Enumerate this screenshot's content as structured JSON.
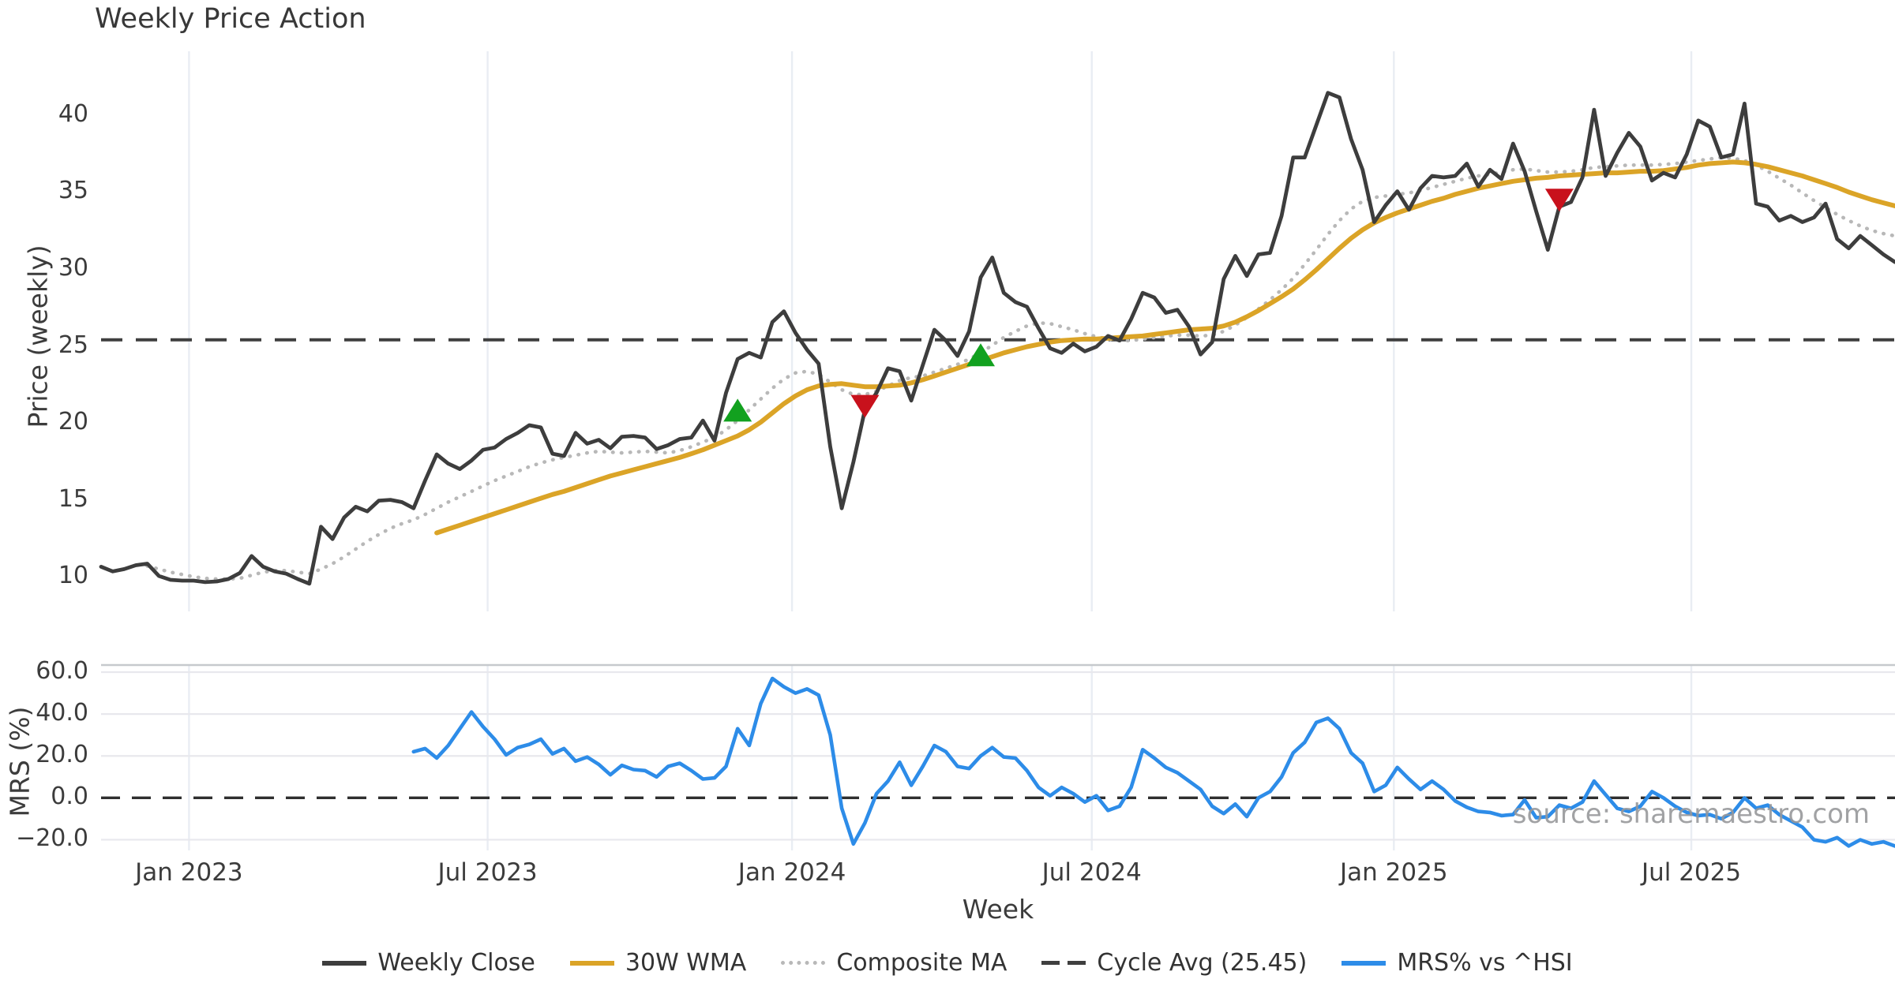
{
  "labels": {
    "title": "Weekly Price Action",
    "price_axis": "Price (weekly)",
    "mrs_axis": "MRS (%)",
    "x_axis": "Week",
    "watermark": "source: sharemaestro.com"
  },
  "legend": [
    {
      "name": "weekly-close",
      "label": "Weekly Close",
      "style": "solid",
      "color": "#3d3d3d"
    },
    {
      "name": "wma",
      "label": "30W WMA",
      "style": "solid",
      "color": "#dba427"
    },
    {
      "name": "composite",
      "label": "Composite MA",
      "style": "dotted",
      "color": "#b8b8b8"
    },
    {
      "name": "cycle-avg",
      "label": "Cycle Avg (25.45)",
      "style": "dashed",
      "color": "#3f3f3f"
    },
    {
      "name": "mrs",
      "label": "MRS% vs ^HSI",
      "style": "solid",
      "color": "#2d8ce8"
    }
  ],
  "colors": {
    "close": "#3d3d3d",
    "wma": "#dba427",
    "composite": "#b8b8b8",
    "cycle": "#3f3f3f",
    "mrs": "#2d8ce8",
    "green": "#12a11f",
    "red": "#c8111c",
    "grid": "#e9edf3",
    "hgrid": "#e8e8ed",
    "spine": "#c6c9cd"
  },
  "chart_data": {
    "type": "line",
    "title": "Weekly Price Action",
    "xlabel": "Week",
    "panels": [
      {
        "name": "price",
        "ylabel": "Price (weekly)",
        "ylim": [
          7.8,
          44.2
        ],
        "yticks": [
          40,
          35,
          30,
          25,
          20,
          15,
          10
        ],
        "cycle_avg": 25.45
      },
      {
        "name": "mrs",
        "ylabel": "MRS (%)",
        "ylim": [
          -25.1,
          63.4
        ],
        "yticks": [
          60.0,
          40.0,
          20.0,
          0.0,
          -20.0
        ],
        "ytick_labels": [
          "60.0",
          "40.0",
          "20.0",
          "0.0",
          "−20.0"
        ],
        "zero_line": 0.0
      }
    ],
    "x_ticks": [
      {
        "week": 7.6,
        "label": "Jan 2023"
      },
      {
        "week": 33.4,
        "label": "Jul 2023"
      },
      {
        "week": 59.7,
        "label": "Jan 2024"
      },
      {
        "week": 85.6,
        "label": "Jul 2024"
      },
      {
        "week": 111.7,
        "label": "Jan 2025"
      },
      {
        "week": 137.4,
        "label": "Jul 2025"
      }
    ],
    "n_weeks": 156,
    "series": [
      {
        "name": "Weekly Close",
        "panel": "price",
        "values": [
          10.7,
          10.4,
          10.55,
          10.8,
          10.9,
          10.1,
          9.85,
          9.8,
          9.8,
          9.7,
          9.75,
          9.9,
          10.3,
          11.4,
          10.7,
          10.4,
          10.25,
          9.9,
          9.6,
          13.3,
          12.5,
          13.9,
          14.6,
          14.3,
          15.0,
          15.05,
          14.9,
          14.5,
          16.3,
          18.0,
          17.4,
          17.05,
          17.6,
          18.3,
          18.45,
          19.0,
          19.4,
          19.9,
          19.75,
          18.05,
          17.9,
          19.4,
          18.7,
          18.95,
          18.4,
          19.15,
          19.2,
          19.1,
          18.35,
          18.6,
          19.0,
          19.1,
          20.2,
          18.9,
          22.0,
          24.2,
          24.6,
          24.3,
          26.6,
          27.3,
          25.9,
          24.8,
          23.9,
          18.5,
          14.5,
          17.5,
          20.9,
          22.0,
          23.6,
          23.4,
          21.5,
          23.8,
          26.1,
          25.4,
          24.4,
          26.0,
          29.5,
          30.8,
          28.5,
          27.9,
          27.6,
          26.2,
          24.9,
          24.6,
          25.2,
          24.7,
          25.0,
          25.7,
          25.4,
          26.8,
          28.5,
          28.2,
          27.2,
          27.4,
          26.3,
          24.5,
          25.3,
          29.4,
          30.9,
          29.6,
          31.0,
          31.1,
          33.5,
          37.3,
          37.3,
          39.4,
          41.5,
          41.2,
          38.5,
          36.5,
          33.1,
          34.2,
          35.1,
          33.9,
          35.3,
          36.1,
          36.0,
          36.1,
          36.9,
          35.4,
          36.5,
          35.9,
          38.2,
          36.4,
          33.8,
          31.3,
          34.1,
          34.4,
          36.0,
          40.4,
          36.1,
          37.6,
          38.9,
          38.0,
          35.8,
          36.3,
          36.0,
          37.5,
          39.7,
          39.3,
          37.3,
          37.5,
          40.8,
          34.3,
          34.1,
          33.2,
          33.5,
          33.1,
          33.4,
          34.3,
          32.0,
          31.4,
          32.2,
          31.6,
          31.0,
          30.5
        ]
      },
      {
        "name": "30W WMA",
        "panel": "price",
        "values": [
          null,
          null,
          null,
          null,
          null,
          null,
          null,
          null,
          null,
          null,
          null,
          null,
          null,
          null,
          null,
          null,
          null,
          null,
          null,
          null,
          null,
          null,
          null,
          null,
          null,
          null,
          null,
          null,
          null,
          12.9,
          13.15,
          13.4,
          13.65,
          13.9,
          14.15,
          14.4,
          14.65,
          14.9,
          15.15,
          15.4,
          15.6,
          15.85,
          16.1,
          16.35,
          16.6,
          16.8,
          17.0,
          17.2,
          17.4,
          17.6,
          17.8,
          18.05,
          18.3,
          18.6,
          18.9,
          19.2,
          19.6,
          20.1,
          20.7,
          21.3,
          21.8,
          22.2,
          22.45,
          22.55,
          22.6,
          22.5,
          22.4,
          22.4,
          22.45,
          22.5,
          22.65,
          22.85,
          23.1,
          23.35,
          23.6,
          23.85,
          24.1,
          24.35,
          24.6,
          24.8,
          25.0,
          25.15,
          25.3,
          25.4,
          25.45,
          25.5,
          25.5,
          25.55,
          25.6,
          25.65,
          25.7,
          25.8,
          25.9,
          26.0,
          26.1,
          26.15,
          26.2,
          26.35,
          26.6,
          26.95,
          27.35,
          27.8,
          28.25,
          28.75,
          29.35,
          30.0,
          30.7,
          31.4,
          32.05,
          32.6,
          33.05,
          33.4,
          33.7,
          33.95,
          34.2,
          34.45,
          34.65,
          34.9,
          35.1,
          35.3,
          35.45,
          35.6,
          35.75,
          35.85,
          35.95,
          36.0,
          36.1,
          36.15,
          36.2,
          36.25,
          36.3,
          36.3,
          36.35,
          36.4,
          36.4,
          36.45,
          36.55,
          36.65,
          36.8,
          36.9,
          36.95,
          37.0,
          36.95,
          36.85,
          36.7,
          36.5,
          36.3,
          36.1,
          35.85,
          35.6,
          35.35,
          35.05,
          34.8,
          34.55,
          34.35,
          34.15
        ]
      },
      {
        "name": "Composite MA",
        "panel": "price",
        "values": [
          null,
          null,
          null,
          null,
          10.75,
          10.55,
          10.35,
          10.2,
          10.05,
          9.95,
          9.9,
          9.9,
          9.95,
          10.15,
          10.35,
          10.45,
          10.45,
          10.35,
          10.25,
          10.55,
          10.9,
          11.35,
          11.85,
          12.35,
          12.8,
          13.2,
          13.5,
          13.75,
          14.1,
          14.5,
          14.9,
          15.25,
          15.6,
          15.95,
          16.3,
          16.6,
          16.9,
          17.2,
          17.45,
          17.65,
          17.8,
          17.95,
          18.1,
          18.2,
          18.15,
          18.1,
          18.15,
          18.2,
          18.15,
          18.1,
          18.25,
          18.5,
          18.8,
          19.1,
          19.6,
          20.2,
          20.9,
          21.6,
          22.3,
          22.9,
          23.3,
          23.4,
          23.2,
          22.7,
          22.2,
          21.9,
          21.9,
          22.1,
          22.45,
          22.8,
          23.0,
          23.1,
          23.35,
          23.6,
          23.85,
          24.2,
          24.6,
          25.1,
          25.6,
          26.0,
          26.35,
          26.55,
          26.5,
          26.3,
          26.1,
          25.85,
          25.65,
          25.5,
          25.4,
          25.4,
          25.5,
          25.6,
          25.7,
          25.75,
          25.75,
          25.7,
          25.75,
          26.0,
          26.4,
          26.9,
          27.45,
          28.05,
          28.7,
          29.45,
          30.35,
          31.3,
          32.3,
          33.2,
          33.95,
          34.45,
          34.7,
          34.8,
          34.9,
          35.0,
          35.15,
          35.35,
          35.55,
          35.75,
          35.95,
          36.1,
          36.2,
          36.35,
          36.5,
          36.55,
          36.45,
          36.35,
          36.35,
          36.4,
          36.5,
          36.65,
          36.7,
          36.75,
          36.8,
          36.8,
          36.8,
          36.85,
          36.9,
          37.0,
          37.1,
          37.2,
          37.3,
          37.25,
          37.1,
          36.8,
          36.4,
          35.95,
          35.5,
          35.0,
          34.5,
          34.05,
          33.6,
          33.2,
          32.85,
          32.55,
          32.35,
          32.2
        ]
      },
      {
        "name": "MRS% vs ^HSI",
        "panel": "mrs",
        "values": [
          null,
          null,
          null,
          null,
          null,
          null,
          null,
          null,
          null,
          null,
          null,
          null,
          null,
          null,
          null,
          null,
          null,
          null,
          null,
          null,
          null,
          null,
          null,
          null,
          null,
          null,
          null,
          22,
          23.5,
          19,
          25,
          33,
          41,
          34,
          28,
          20.5,
          24,
          25.5,
          28,
          21,
          23.5,
          17.5,
          19.5,
          16,
          11,
          15.5,
          13.5,
          13,
          10,
          15,
          16.5,
          13,
          9,
          9.5,
          15,
          33,
          25,
          45,
          57,
          53,
          50,
          52,
          49,
          30,
          -5,
          -22,
          -12,
          2,
          8,
          17,
          6,
          15,
          25,
          22,
          15,
          14,
          20,
          24,
          19.5,
          19,
          13,
          5,
          1,
          5,
          2,
          -2,
          1,
          -6,
          -4,
          5,
          23,
          19,
          14.5,
          12,
          8,
          4,
          -4,
          -7.5,
          -3,
          -9,
          0,
          3,
          10,
          21.5,
          26.5,
          36,
          38,
          33,
          21.5,
          16.5,
          3,
          6,
          14.5,
          9,
          4,
          8,
          4,
          -1.5,
          -4.5,
          -6.5,
          -7,
          -8.5,
          -8,
          -1,
          -9.5,
          -9,
          -3.5,
          -5,
          -2,
          8,
          1.5,
          -5,
          -6.5,
          -4,
          3,
          0,
          -4,
          -7,
          -8.5,
          -8,
          -10,
          -7,
          0,
          -5,
          -3.5,
          -8,
          -11,
          -14,
          -20,
          -21,
          -19,
          -23,
          -20,
          -22,
          -21,
          -23
        ]
      }
    ],
    "markers": {
      "green_up": [
        {
          "week": 55,
          "value": 20.8
        },
        {
          "week": 76,
          "value": 24.4
        }
      ],
      "red_down": [
        {
          "week": 66,
          "value": 21.2
        },
        {
          "week": 126,
          "value": 34.6
        }
      ]
    }
  }
}
